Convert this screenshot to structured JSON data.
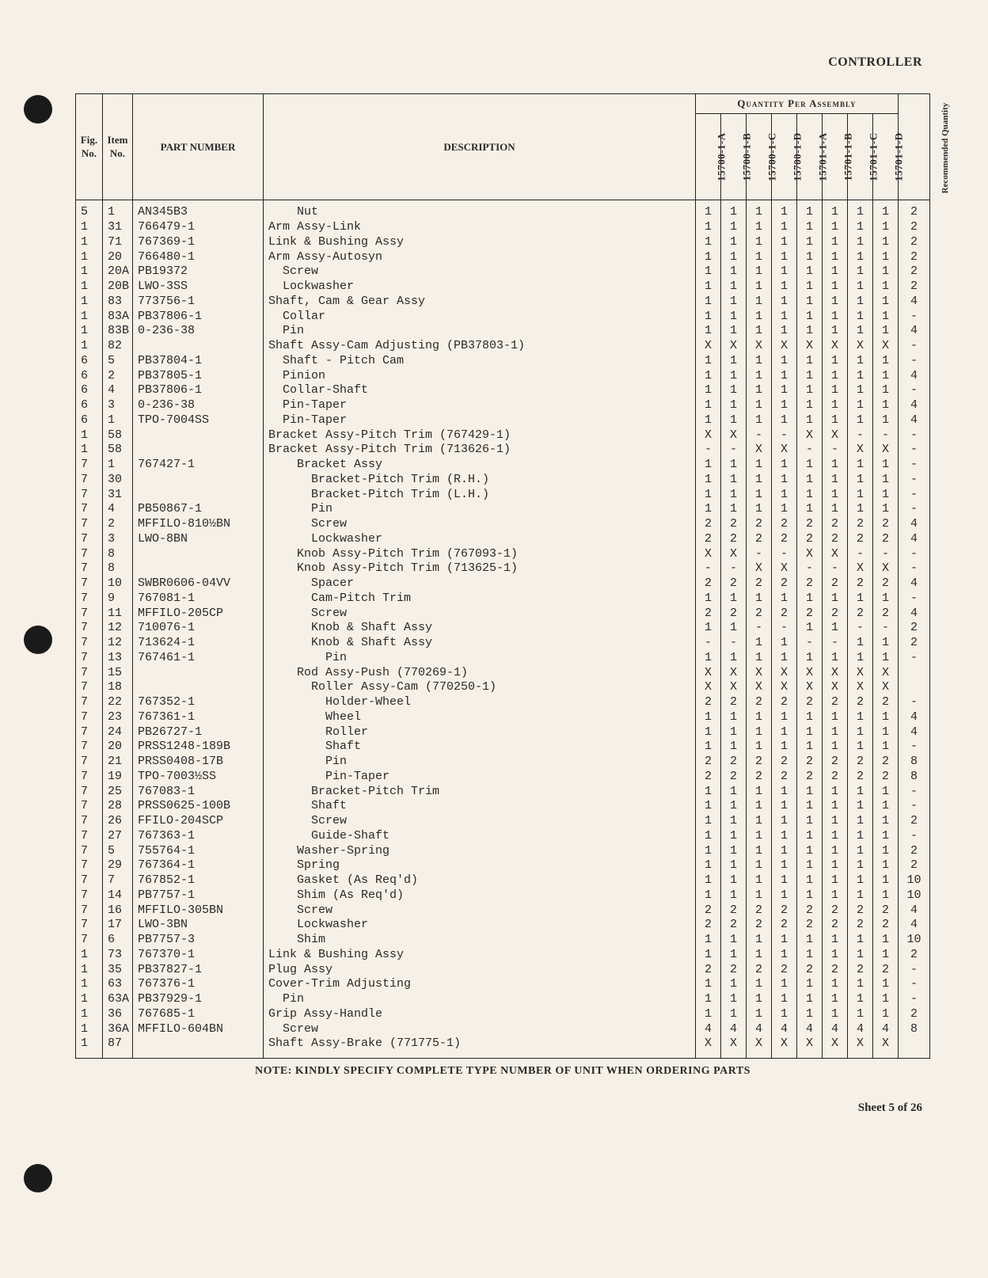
{
  "header": {
    "right": "CONTROLLER"
  },
  "table": {
    "headers": {
      "fig": "Fig. No.",
      "item": "Item No.",
      "part_number": "PART NUMBER",
      "description": "DESCRIPTION",
      "qpa": "Quantity Per Assembly",
      "qty_cols": [
        "15700-1-A",
        "15700-1-B",
        "15700-1-C",
        "15700-1-D",
        "15701-1-A",
        "15701-1-B",
        "15701-1-C",
        "15701-1-D"
      ],
      "recommended": "Recommended Quantity"
    },
    "rows": [
      {
        "fig": "5",
        "item": "1",
        "pn": "AN345B3",
        "desc": "Nut",
        "indent": 2,
        "q": [
          "1",
          "1",
          "1",
          "1",
          "1",
          "1",
          "1",
          "1"
        ],
        "rec": "2"
      },
      {
        "fig": "1",
        "item": "31",
        "pn": "766479-1",
        "desc": "Arm Assy-Link",
        "indent": 0,
        "q": [
          "1",
          "1",
          "1",
          "1",
          "1",
          "1",
          "1",
          "1"
        ],
        "rec": "2"
      },
      {
        "fig": "1",
        "item": "71",
        "pn": "767369-1",
        "desc": "Link & Bushing Assy",
        "indent": 0,
        "q": [
          "1",
          "1",
          "1",
          "1",
          "1",
          "1",
          "1",
          "1"
        ],
        "rec": "2"
      },
      {
        "fig": "1",
        "item": "20",
        "pn": "766480-1",
        "desc": "Arm Assy-Autosyn",
        "indent": 0,
        "q": [
          "1",
          "1",
          "1",
          "1",
          "1",
          "1",
          "1",
          "1"
        ],
        "rec": "2"
      },
      {
        "fig": "1",
        "item": "20A",
        "pn": "PB19372",
        "desc": "Screw",
        "indent": 1,
        "q": [
          "1",
          "1",
          "1",
          "1",
          "1",
          "1",
          "1",
          "1"
        ],
        "rec": "2"
      },
      {
        "fig": "1",
        "item": "20B",
        "pn": "LWO-3SS",
        "desc": "Lockwasher",
        "indent": 1,
        "q": [
          "1",
          "1",
          "1",
          "1",
          "1",
          "1",
          "1",
          "1"
        ],
        "rec": "2"
      },
      {
        "fig": "1",
        "item": "83",
        "pn": "773756-1",
        "desc": "Shaft, Cam & Gear Assy",
        "indent": 0,
        "q": [
          "1",
          "1",
          "1",
          "1",
          "1",
          "1",
          "1",
          "1"
        ],
        "rec": "4"
      },
      {
        "fig": "1",
        "item": "83A",
        "pn": "PB37806-1",
        "desc": "Collar",
        "indent": 1,
        "q": [
          "1",
          "1",
          "1",
          "1",
          "1",
          "1",
          "1",
          "1"
        ],
        "rec": "-"
      },
      {
        "fig": "1",
        "item": "83B",
        "pn": "0-236-38",
        "desc": "Pin",
        "indent": 1,
        "q": [
          "1",
          "1",
          "1",
          "1",
          "1",
          "1",
          "1",
          "1"
        ],
        "rec": "4"
      },
      {
        "fig": "1",
        "item": "82",
        "pn": "",
        "desc": "Shaft Assy-Cam Adjusting (PB37803-1)",
        "indent": 0,
        "q": [
          "X",
          "X",
          "X",
          "X",
          "X",
          "X",
          "X",
          "X"
        ],
        "rec": "-"
      },
      {
        "fig": "6",
        "item": "5",
        "pn": "PB37804-1",
        "desc": "Shaft - Pitch Cam",
        "indent": 1,
        "q": [
          "1",
          "1",
          "1",
          "1",
          "1",
          "1",
          "1",
          "1"
        ],
        "rec": "-"
      },
      {
        "fig": "6",
        "item": "2",
        "pn": "PB37805-1",
        "desc": "Pinion",
        "indent": 1,
        "q": [
          "1",
          "1",
          "1",
          "1",
          "1",
          "1",
          "1",
          "1"
        ],
        "rec": "4"
      },
      {
        "fig": "6",
        "item": "4",
        "pn": "PB37806-1",
        "desc": "Collar-Shaft",
        "indent": 1,
        "q": [
          "1",
          "1",
          "1",
          "1",
          "1",
          "1",
          "1",
          "1"
        ],
        "rec": "-"
      },
      {
        "fig": "6",
        "item": "3",
        "pn": "0-236-38",
        "desc": "Pin-Taper",
        "indent": 1,
        "q": [
          "1",
          "1",
          "1",
          "1",
          "1",
          "1",
          "1",
          "1"
        ],
        "rec": "4"
      },
      {
        "fig": "6",
        "item": "1",
        "pn": "TPO-7004SS",
        "desc": "Pin-Taper",
        "indent": 1,
        "q": [
          "1",
          "1",
          "1",
          "1",
          "1",
          "1",
          "1",
          "1"
        ],
        "rec": "4"
      },
      {
        "fig": "1",
        "item": "58",
        "pn": "",
        "desc": "Bracket Assy-Pitch Trim (767429-1)",
        "indent": 0,
        "q": [
          "X",
          "X",
          "-",
          "-",
          "X",
          "X",
          "-",
          "-"
        ],
        "rec": "-"
      },
      {
        "fig": "1",
        "item": "58",
        "pn": "",
        "desc": "Bracket Assy-Pitch Trim (713626-1)",
        "indent": 0,
        "q": [
          "-",
          "-",
          "X",
          "X",
          "-",
          "-",
          "X",
          "X"
        ],
        "rec": "-"
      },
      {
        "fig": "7",
        "item": "1",
        "pn": "767427-1",
        "desc": "Bracket Assy",
        "indent": 2,
        "q": [
          "1",
          "1",
          "1",
          "1",
          "1",
          "1",
          "1",
          "1"
        ],
        "rec": "-"
      },
      {
        "fig": "7",
        "item": "30",
        "pn": "",
        "desc": "Bracket-Pitch Trim (R.H.)",
        "indent": 3,
        "q": [
          "1",
          "1",
          "1",
          "1",
          "1",
          "1",
          "1",
          "1"
        ],
        "rec": "-"
      },
      {
        "fig": "7",
        "item": "31",
        "pn": "",
        "desc": "Bracket-Pitch Trim (L.H.)",
        "indent": 3,
        "q": [
          "1",
          "1",
          "1",
          "1",
          "1",
          "1",
          "1",
          "1"
        ],
        "rec": "-"
      },
      {
        "fig": "7",
        "item": "4",
        "pn": "PB50867-1",
        "desc": "Pin",
        "indent": 3,
        "q": [
          "1",
          "1",
          "1",
          "1",
          "1",
          "1",
          "1",
          "1"
        ],
        "rec": "-"
      },
      {
        "fig": "7",
        "item": "2",
        "pn": "MFFILO-810½BN",
        "desc": "Screw",
        "indent": 3,
        "q": [
          "2",
          "2",
          "2",
          "2",
          "2",
          "2",
          "2",
          "2"
        ],
        "rec": "4"
      },
      {
        "fig": "7",
        "item": "3",
        "pn": "LWO-8BN",
        "desc": "Lockwasher",
        "indent": 3,
        "q": [
          "2",
          "2",
          "2",
          "2",
          "2",
          "2",
          "2",
          "2"
        ],
        "rec": "4"
      },
      {
        "fig": "7",
        "item": "8",
        "pn": "",
        "desc": "Knob Assy-Pitch Trim (767093-1)",
        "indent": 2,
        "q": [
          "X",
          "X",
          "-",
          "-",
          "X",
          "X",
          "-",
          "-"
        ],
        "rec": "-"
      },
      {
        "fig": "7",
        "item": "8",
        "pn": "",
        "desc": "Knob Assy-Pitch Trim (713625-1)",
        "indent": 2,
        "q": [
          "-",
          "-",
          "X",
          "X",
          "-",
          "-",
          "X",
          "X"
        ],
        "rec": "-"
      },
      {
        "fig": "7",
        "item": "10",
        "pn": "SWBR0606-04VV",
        "desc": "Spacer",
        "indent": 3,
        "q": [
          "2",
          "2",
          "2",
          "2",
          "2",
          "2",
          "2",
          "2"
        ],
        "rec": "4"
      },
      {
        "fig": "7",
        "item": "9",
        "pn": "767081-1",
        "desc": "Cam-Pitch Trim",
        "indent": 3,
        "q": [
          "1",
          "1",
          "1",
          "1",
          "1",
          "1",
          "1",
          "1"
        ],
        "rec": "-"
      },
      {
        "fig": "7",
        "item": "11",
        "pn": "MFFILO-205CP",
        "desc": "Screw",
        "indent": 3,
        "q": [
          "2",
          "2",
          "2",
          "2",
          "2",
          "2",
          "2",
          "2"
        ],
        "rec": "4"
      },
      {
        "fig": "7",
        "item": "12",
        "pn": "710076-1",
        "desc": "Knob & Shaft Assy",
        "indent": 3,
        "q": [
          "1",
          "1",
          "-",
          "-",
          "1",
          "1",
          "-",
          "-"
        ],
        "rec": "2"
      },
      {
        "fig": "7",
        "item": "12",
        "pn": "713624-1",
        "desc": "Knob & Shaft Assy",
        "indent": 3,
        "q": [
          "-",
          "-",
          "1",
          "1",
          "-",
          "-",
          "1",
          "1"
        ],
        "rec": "2"
      },
      {
        "fig": "7",
        "item": "13",
        "pn": "767461-1",
        "desc": "Pin",
        "indent": 4,
        "q": [
          "1",
          "1",
          "1",
          "1",
          "1",
          "1",
          "1",
          "1"
        ],
        "rec": "-"
      },
      {
        "fig": "7",
        "item": "15",
        "pn": "",
        "desc": "Rod Assy-Push (770269-1)",
        "indent": 2,
        "q": [
          "X",
          "X",
          "X",
          "X",
          "X",
          "X",
          "X",
          "X"
        ],
        "rec": ""
      },
      {
        "fig": "7",
        "item": "18",
        "pn": "",
        "desc": "Roller Assy-Cam (770250-1)",
        "indent": 3,
        "q": [
          "X",
          "X",
          "X",
          "X",
          "X",
          "X",
          "X",
          "X"
        ],
        "rec": ""
      },
      {
        "fig": "7",
        "item": "22",
        "pn": "767352-1",
        "desc": "Holder-Wheel",
        "indent": 4,
        "q": [
          "2",
          "2",
          "2",
          "2",
          "2",
          "2",
          "2",
          "2"
        ],
        "rec": "-"
      },
      {
        "fig": "7",
        "item": "23",
        "pn": "767361-1",
        "desc": "Wheel",
        "indent": 4,
        "q": [
          "1",
          "1",
          "1",
          "1",
          "1",
          "1",
          "1",
          "1"
        ],
        "rec": "4"
      },
      {
        "fig": "7",
        "item": "24",
        "pn": "PB26727-1",
        "desc": "Roller",
        "indent": 4,
        "q": [
          "1",
          "1",
          "1",
          "1",
          "1",
          "1",
          "1",
          "1"
        ],
        "rec": "4"
      },
      {
        "fig": "7",
        "item": "20",
        "pn": "PRSS1248-189B",
        "desc": "Shaft",
        "indent": 4,
        "q": [
          "1",
          "1",
          "1",
          "1",
          "1",
          "1",
          "1",
          "1"
        ],
        "rec": "-"
      },
      {
        "fig": "7",
        "item": "21",
        "pn": "PRSS0408-17B",
        "desc": "Pin",
        "indent": 4,
        "q": [
          "2",
          "2",
          "2",
          "2",
          "2",
          "2",
          "2",
          "2"
        ],
        "rec": "8"
      },
      {
        "fig": "7",
        "item": "19",
        "pn": "TPO-7003½SS",
        "desc": "Pin-Taper",
        "indent": 4,
        "q": [
          "2",
          "2",
          "2",
          "2",
          "2",
          "2",
          "2",
          "2"
        ],
        "rec": "8"
      },
      {
        "fig": "7",
        "item": "25",
        "pn": "767083-1",
        "desc": "Bracket-Pitch Trim",
        "indent": 3,
        "q": [
          "1",
          "1",
          "1",
          "1",
          "1",
          "1",
          "1",
          "1"
        ],
        "rec": "-"
      },
      {
        "fig": "7",
        "item": "28",
        "pn": "PRSS0625-100B",
        "desc": "Shaft",
        "indent": 3,
        "q": [
          "1",
          "1",
          "1",
          "1",
          "1",
          "1",
          "1",
          "1"
        ],
        "rec": "-"
      },
      {
        "fig": "7",
        "item": "26",
        "pn": "FFILO-204SCP",
        "desc": "Screw",
        "indent": 3,
        "q": [
          "1",
          "1",
          "1",
          "1",
          "1",
          "1",
          "1",
          "1"
        ],
        "rec": "2"
      },
      {
        "fig": "7",
        "item": "27",
        "pn": "767363-1",
        "desc": "Guide-Shaft",
        "indent": 3,
        "q": [
          "1",
          "1",
          "1",
          "1",
          "1",
          "1",
          "1",
          "1"
        ],
        "rec": "-"
      },
      {
        "fig": "7",
        "item": "5",
        "pn": "755764-1",
        "desc": "Washer-Spring",
        "indent": 2,
        "q": [
          "1",
          "1",
          "1",
          "1",
          "1",
          "1",
          "1",
          "1"
        ],
        "rec": "2"
      },
      {
        "fig": "7",
        "item": "29",
        "pn": "767364-1",
        "desc": "Spring",
        "indent": 2,
        "q": [
          "1",
          "1",
          "1",
          "1",
          "1",
          "1",
          "1",
          "1"
        ],
        "rec": "2"
      },
      {
        "fig": "7",
        "item": "7",
        "pn": "767852-1",
        "desc": "Gasket (As Req'd)",
        "indent": 2,
        "q": [
          "1",
          "1",
          "1",
          "1",
          "1",
          "1",
          "1",
          "1"
        ],
        "rec": "10"
      },
      {
        "fig": "7",
        "item": "14",
        "pn": "PB7757-1",
        "desc": "Shim (As Req'd)",
        "indent": 2,
        "q": [
          "1",
          "1",
          "1",
          "1",
          "1",
          "1",
          "1",
          "1"
        ],
        "rec": "10"
      },
      {
        "fig": "7",
        "item": "16",
        "pn": "MFFILO-305BN",
        "desc": "Screw",
        "indent": 2,
        "q": [
          "2",
          "2",
          "2",
          "2",
          "2",
          "2",
          "2",
          "2"
        ],
        "rec": "4"
      },
      {
        "fig": "7",
        "item": "17",
        "pn": "LWO-3BN",
        "desc": "Lockwasher",
        "indent": 2,
        "q": [
          "2",
          "2",
          "2",
          "2",
          "2",
          "2",
          "2",
          "2"
        ],
        "rec": "4"
      },
      {
        "fig": "7",
        "item": "6",
        "pn": "PB7757-3",
        "desc": "Shim",
        "indent": 2,
        "q": [
          "1",
          "1",
          "1",
          "1",
          "1",
          "1",
          "1",
          "1"
        ],
        "rec": "10"
      },
      {
        "fig": "1",
        "item": "73",
        "pn": "767370-1",
        "desc": "Link & Bushing Assy",
        "indent": 0,
        "q": [
          "1",
          "1",
          "1",
          "1",
          "1",
          "1",
          "1",
          "1"
        ],
        "rec": "2"
      },
      {
        "fig": "1",
        "item": "35",
        "pn": "PB37827-1",
        "desc": "Plug Assy",
        "indent": 0,
        "q": [
          "2",
          "2",
          "2",
          "2",
          "2",
          "2",
          "2",
          "2"
        ],
        "rec": "-"
      },
      {
        "fig": "1",
        "item": "63",
        "pn": "767376-1",
        "desc": "Cover-Trim Adjusting",
        "indent": 0,
        "q": [
          "1",
          "1",
          "1",
          "1",
          "1",
          "1",
          "1",
          "1"
        ],
        "rec": "-"
      },
      {
        "fig": "1",
        "item": "63A",
        "pn": "PB37929-1",
        "desc": "Pin",
        "indent": 1,
        "q": [
          "1",
          "1",
          "1",
          "1",
          "1",
          "1",
          "1",
          "1"
        ],
        "rec": "-"
      },
      {
        "fig": "1",
        "item": "36",
        "pn": "767685-1",
        "desc": "Grip Assy-Handle",
        "indent": 0,
        "q": [
          "1",
          "1",
          "1",
          "1",
          "1",
          "1",
          "1",
          "1"
        ],
        "rec": "2"
      },
      {
        "fig": "1",
        "item": "36A",
        "pn": "MFFILO-604BN",
        "desc": "Screw",
        "indent": 1,
        "q": [
          "4",
          "4",
          "4",
          "4",
          "4",
          "4",
          "4",
          "4"
        ],
        "rec": "8"
      },
      {
        "fig": "1",
        "item": "87",
        "pn": "",
        "desc": "Shaft Assy-Brake (771775-1)",
        "indent": 0,
        "q": [
          "X",
          "X",
          "X",
          "X",
          "X",
          "X",
          "X",
          "X"
        ],
        "rec": ""
      }
    ]
  },
  "footnote": "NOTE: KINDLY SPECIFY COMPLETE TYPE NUMBER OF UNIT WHEN ORDERING PARTS",
  "sheet": "Sheet 5 of 26"
}
